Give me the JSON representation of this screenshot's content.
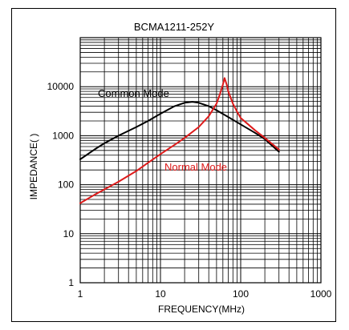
{
  "chart_data": {
    "type": "line",
    "title": "BCMA1211-252Y",
    "xlabel": "FREQUENCY(MHz)",
    "ylabel": "IMPEDANCE(  )",
    "x_scale": "log",
    "y_scale": "log",
    "xlim": [
      1,
      1000
    ],
    "ylim": [
      1,
      100000
    ],
    "x_ticks": [
      {
        "value": 1,
        "label": "1"
      },
      {
        "value": 10,
        "label": "10"
      },
      {
        "value": 100,
        "label": "100"
      },
      {
        "value": 1000,
        "label": "1000"
      }
    ],
    "y_ticks": [
      {
        "value": 1,
        "label": "1"
      },
      {
        "value": 10,
        "label": "10"
      },
      {
        "value": 100,
        "label": "100"
      },
      {
        "value": 1000,
        "label": "1000"
      },
      {
        "value": 10000,
        "label": "10000"
      }
    ],
    "grid": true,
    "series": [
      {
        "name": "Common Mode",
        "color": "#000000",
        "x": [
          1,
          1.5,
          2,
          3,
          5,
          7,
          10,
          15,
          20,
          25,
          30,
          40,
          50,
          70,
          100,
          150,
          200,
          300
        ],
        "y": [
          330,
          520,
          700,
          1000,
          1500,
          2000,
          2800,
          4000,
          4700,
          4900,
          4700,
          4000,
          3300,
          2400,
          1700,
          1150,
          850,
          470
        ]
      },
      {
        "name": "Normal Mode",
        "color": "#dd1a1a",
        "x": [
          1,
          1.5,
          2,
          3,
          5,
          7,
          10,
          15,
          20,
          30,
          40,
          50,
          55,
          60,
          63,
          67,
          70,
          80,
          90,
          100,
          150,
          200,
          300
        ],
        "y": [
          42,
          62,
          80,
          115,
          190,
          280,
          420,
          650,
          900,
          1500,
          2500,
          4500,
          7000,
          11000,
          15000,
          11000,
          8000,
          4500,
          3100,
          2300,
          1300,
          900,
          520
        ]
      }
    ]
  }
}
